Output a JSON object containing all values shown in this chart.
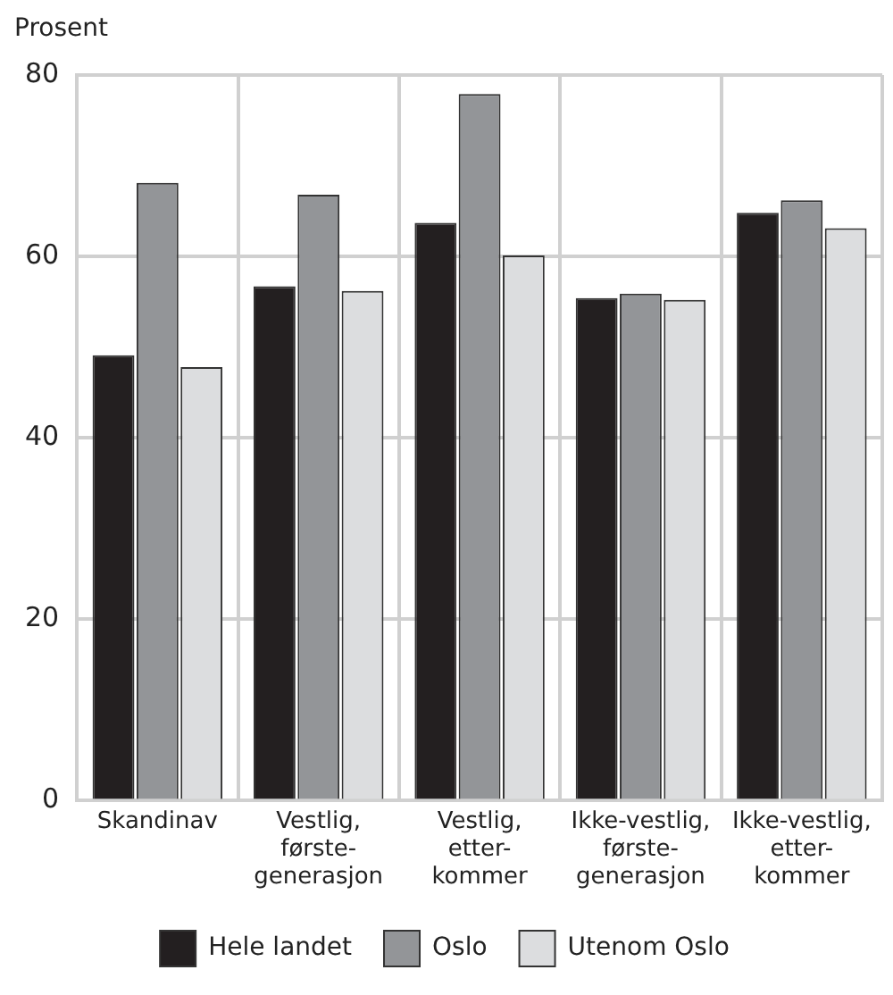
{
  "chart_data": {
    "type": "bar",
    "ylabel": "Prosent",
    "categories": [
      "Skandinav",
      "Vestlig,\nførste-\ngenerasjon",
      "Vestlig,\netter-\nkommer",
      "Ikke-vestlig,\nførste-\ngenerasjon",
      "Ikke-vestlig,\netter-\nkommer"
    ],
    "series": [
      {
        "name": "Hele landet",
        "color": "#231f20",
        "values": [
          49.1,
          56.7,
          63.7,
          55.4,
          64.8
        ]
      },
      {
        "name": "Oslo",
        "color": "#939598",
        "values": [
          68.1,
          66.8,
          77.9,
          55.9,
          66.2
        ]
      },
      {
        "name": "Utenom Oslo",
        "color": "#dcdddf",
        "values": [
          47.8,
          56.2,
          60.1,
          55.2,
          63.1
        ]
      }
    ],
    "ylim": [
      0,
      80
    ],
    "yticks": [
      0,
      20,
      40,
      60,
      80
    ],
    "grid": true,
    "legend": "bottom"
  }
}
